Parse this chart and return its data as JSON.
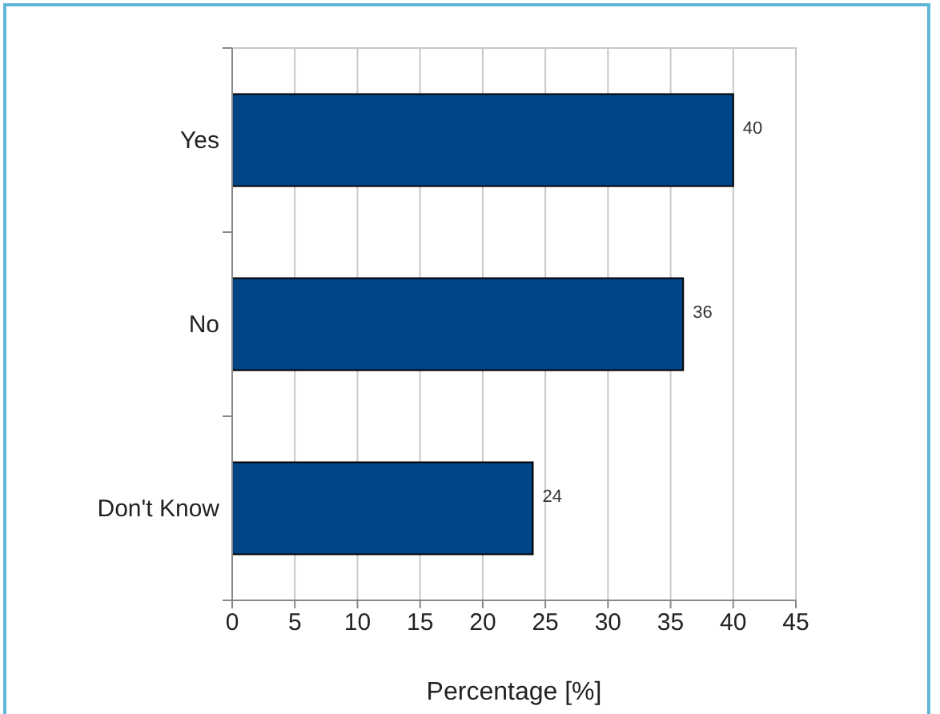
{
  "chart_data": {
    "type": "bar",
    "orientation": "horizontal",
    "xlabel": "Percentage [%]",
    "categories": [
      "Yes",
      "No",
      "Don't Know"
    ],
    "values": [
      40,
      36,
      24
    ],
    "color": "#004586",
    "data_labels": true,
    "xlim": [
      0,
      45
    ],
    "xticks": [
      0,
      5,
      10,
      15,
      20,
      25,
      30,
      35,
      40,
      45
    ],
    "grid": "x"
  }
}
